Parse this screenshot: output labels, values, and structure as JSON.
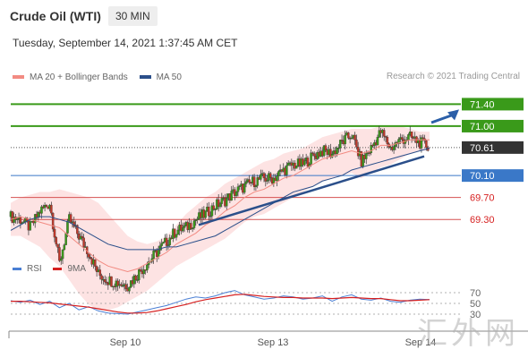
{
  "header": {
    "title": "Crude Oil (WTI)",
    "timeframe": "30 MIN"
  },
  "timestamp": "Tuesday, September 14, 2021 1:37:45 AM CET",
  "legend": {
    "items": [
      {
        "label": "MA 20 + Bollinger Bands",
        "color": "#f28b82"
      },
      {
        "label": "MA 50",
        "color": "#2b4f8a"
      }
    ],
    "copyright": "Research © 2021 Trading Central"
  },
  "rsi_legend": {
    "items": [
      {
        "label": "RSI",
        "color": "#4a7fd4"
      },
      {
        "label": "9MA",
        "color": "#d62020"
      }
    ]
  },
  "watermark": "汇外网",
  "colors": {
    "resistance": "#3a9a1a",
    "support": "#3a78c8",
    "support2": "#d65050",
    "candle_up": "#3a9a1a",
    "candle_down": "#c0392b",
    "bollinger_fill": "#fde3e3",
    "trendline": "#2b4f8a",
    "arrow": "#2b5fa8",
    "current_price": "#333333"
  },
  "chart_data": [
    {
      "type": "candlestick",
      "title": "",
      "ylim": [
        68.7,
        71.7
      ],
      "x_tick_labels": [
        "Sep 10",
        "Sep 13",
        "Sep 14"
      ],
      "levels": [
        {
          "value": 71.4,
          "label": "71.40",
          "role": "resistance"
        },
        {
          "value": 71.0,
          "label": "71.00",
          "role": "resistance"
        },
        {
          "value": 70.61,
          "label": "70.61",
          "role": "current_price"
        },
        {
          "value": 70.1,
          "label": "70.10",
          "role": "support"
        },
        {
          "value": 69.7,
          "label": "69.70",
          "role": "support2"
        },
        {
          "value": 69.3,
          "label": "69.30",
          "role": "support2"
        }
      ],
      "close_path": [
        69.35,
        69.3,
        69.15,
        69.45,
        69.6,
        68.5,
        69.3,
        69.0,
        68.7,
        68.3,
        68.2,
        68.15,
        68.1,
        68.3,
        68.5,
        68.7,
        68.9,
        69.1,
        69.15,
        69.3,
        69.4,
        69.55,
        69.65,
        69.8,
        69.9,
        70.0,
        70.05,
        70.05,
        70.2,
        70.3,
        70.3,
        70.45,
        70.55,
        70.5,
        70.7,
        70.85,
        70.35,
        70.6,
        70.9,
        70.6,
        70.75,
        70.8,
        70.7,
        70.61
      ],
      "ma20_path": [
        69.3,
        69.35,
        69.3,
        69.25,
        69.2,
        69.15,
        69.0,
        68.85,
        68.7,
        68.55,
        68.45,
        68.4,
        68.35,
        68.4,
        68.5,
        68.6,
        68.7,
        68.85,
        68.95,
        69.05,
        69.2,
        69.3,
        69.45,
        69.55,
        69.7,
        69.8,
        69.85,
        69.95,
        70.05,
        70.1,
        70.2,
        70.3,
        70.4,
        70.45,
        70.5,
        70.55,
        70.5,
        70.55,
        70.65,
        70.65,
        70.7,
        70.75,
        70.75,
        70.75
      ],
      "ma50_path": [
        69.1,
        69.2,
        69.3,
        69.35,
        69.35,
        69.3,
        69.25,
        69.15,
        69.05,
        68.95,
        68.85,
        68.8,
        68.75,
        68.75,
        68.75,
        68.75,
        68.8,
        68.8,
        68.85,
        68.9,
        68.95,
        69.0,
        69.1,
        69.2,
        69.3,
        69.4,
        69.5,
        69.6,
        69.7,
        69.8,
        69.85,
        69.9,
        70.0,
        70.05,
        70.1,
        70.2,
        70.25,
        70.3,
        70.35,
        70.4,
        70.45,
        70.5,
        70.55,
        70.6
      ],
      "bb_upper_path": [
        69.6,
        69.7,
        69.75,
        69.8,
        69.8,
        69.85,
        69.8,
        69.75,
        69.7,
        69.6,
        69.4,
        69.2,
        69.0,
        68.9,
        68.85,
        68.9,
        69.0,
        69.2,
        69.4,
        69.55,
        69.7,
        69.8,
        69.95,
        70.05,
        70.15,
        70.25,
        70.35,
        70.4,
        70.5,
        70.55,
        70.6,
        70.7,
        70.8,
        70.85,
        70.9,
        70.95,
        70.95,
        70.95,
        71.0,
        71.0,
        71.0,
        70.95,
        70.9,
        70.9
      ],
      "bb_lower_path": [
        69.0,
        69.0,
        68.9,
        68.8,
        68.6,
        68.45,
        68.2,
        67.95,
        67.75,
        67.65,
        67.65,
        67.7,
        67.8,
        67.9,
        68.0,
        68.15,
        68.3,
        68.45,
        68.55,
        68.65,
        68.75,
        68.85,
        68.95,
        69.1,
        69.25,
        69.35,
        69.4,
        69.5,
        69.6,
        69.7,
        69.8,
        69.9,
        70.0,
        70.05,
        70.1,
        70.15,
        70.05,
        70.15,
        70.25,
        70.3,
        70.4,
        70.5,
        70.55,
        70.55
      ],
      "trendline": {
        "from": 69.2,
        "to": 70.45
      },
      "arrow_target": 71.4
    },
    {
      "type": "line",
      "title": "RSI",
      "ylim": [
        15,
        85
      ],
      "y_tick_labels": [
        "70",
        "50",
        "30"
      ],
      "y_tick_values": [
        70,
        50,
        30
      ],
      "series": [
        {
          "name": "RSI",
          "values": [
            55,
            52,
            56,
            48,
            54,
            42,
            50,
            38,
            44,
            36,
            32,
            31,
            30,
            34,
            38,
            42,
            46,
            52,
            58,
            62,
            60,
            64,
            70,
            74,
            66,
            62,
            58,
            60,
            64,
            62,
            58,
            60,
            64,
            54,
            62,
            66,
            58,
            56,
            60,
            54,
            52,
            56,
            58,
            57
          ]
        },
        {
          "name": "9MA",
          "values": [
            54,
            54,
            53,
            52,
            51,
            49,
            47,
            45,
            43,
            40,
            37,
            34,
            32,
            32,
            33,
            36,
            40,
            44,
            48,
            53,
            57,
            60,
            63,
            66,
            67,
            65,
            63,
            62,
            61,
            61,
            60,
            60,
            60,
            59,
            60,
            61,
            60,
            59,
            59,
            57,
            55,
            55,
            56,
            57
          ]
        }
      ]
    }
  ]
}
